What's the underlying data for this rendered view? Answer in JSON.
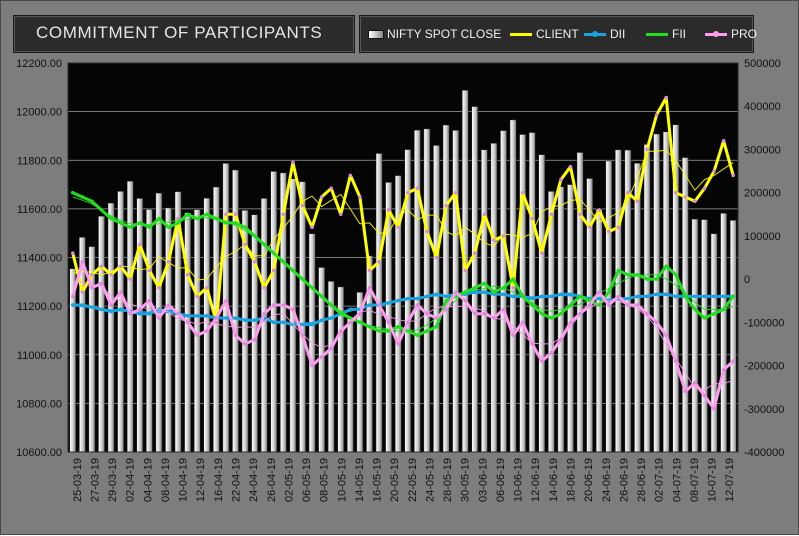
{
  "title": "COMMITMENT  OF PARTICIPANTS",
  "legend": [
    {
      "name": "NIFTY SPOT CLOSE",
      "color": "#e8e8e8",
      "kind": "bar"
    },
    {
      "name": "CLIENT",
      "color": "#ffff00",
      "kind": "line"
    },
    {
      "name": "DII",
      "color": "#19a3e0",
      "kind": "line"
    },
    {
      "name": "FII",
      "color": "#22dd22",
      "kind": "line"
    },
    {
      "name": "PRO",
      "color": "#ff9cf0",
      "kind": "line"
    }
  ],
  "chart_data": {
    "type": "bar",
    "title": "COMMITMENT  OF PARTICIPANTS",
    "x_tick_labels": [
      "25-03-19",
      "27-03-19",
      "29-03-19",
      "02-04-19",
      "04-04-19",
      "08-04-19",
      "10-04-19",
      "12-04-19",
      "16-04-19",
      "22-04-19",
      "24-04-19",
      "26-04-19",
      "02-05-19",
      "06-05-19",
      "08-05-19",
      "10-05-19",
      "14-05-19",
      "16-05-19",
      "20-05-19",
      "22-05-19",
      "24-05-19",
      "28-05-19",
      "30-05-19",
      "03-06-19",
      "06-06-19",
      "10-06-19",
      "12-06-19",
      "14-06-19",
      "18-06-19",
      "20-06-19",
      "24-06-19",
      "26-06-19",
      "28-06-19",
      "02-07-19",
      "04-07-19",
      "08-07-19",
      "10-07-19",
      "12-07-19"
    ],
    "y_left": {
      "ticks": [
        "10600.00",
        "10800.00",
        "11000.00",
        "11200.00",
        "11400.00",
        "11600.00",
        "11800.00",
        "12000.00",
        "12200.00"
      ],
      "range": [
        10600,
        12200
      ]
    },
    "y_right": {
      "ticks": [
        "-400000",
        "-300000",
        "-200000",
        "-100000",
        "0",
        "100000",
        "200000",
        "300000",
        "400000",
        "500000"
      ],
      "range": [
        -400000,
        500000
      ]
    },
    "series": [
      {
        "name": "NIFTY SPOT CLOSE",
        "axis": "left",
        "type": "bar",
        "values": [
          11354,
          11483,
          11445,
          11570,
          11624,
          11672,
          11714,
          11643,
          11598,
          11665,
          11604,
          11671,
          11584,
          11597,
          11644,
          11690,
          11787,
          11760,
          11594,
          11576,
          11643,
          11754,
          11748,
          11724,
          11712,
          11498,
          11359,
          11302,
          11279,
          11148,
          11257,
          11407,
          11828,
          11709,
          11737,
          11844,
          11924,
          11929,
          11861,
          11945,
          11923,
          12088,
          12021,
          11843,
          11870,
          11922,
          11966,
          11906,
          11914,
          11823,
          11672,
          11691,
          11700,
          11832,
          11725,
          11600,
          11797,
          11843,
          11842,
          11788,
          11865,
          11908,
          11917,
          11946,
          11811,
          11558,
          11556,
          11498,
          11582,
          11553
        ]
      },
      {
        "name": "CLIENT",
        "axis": "right",
        "type": "line",
        "values": [
          60000,
          -30000,
          10000,
          30000,
          10000,
          30000,
          0,
          80000,
          20000,
          -20000,
          40000,
          140000,
          10000,
          -40000,
          -20000,
          -100000,
          150000,
          150000,
          80000,
          40000,
          -20000,
          20000,
          150000,
          270000,
          170000,
          120000,
          190000,
          210000,
          150000,
          240000,
          190000,
          20000,
          40000,
          160000,
          120000,
          200000,
          210000,
          110000,
          50000,
          170000,
          200000,
          20000,
          60000,
          150000,
          90000,
          100000,
          -20000,
          200000,
          140000,
          60000,
          150000,
          230000,
          260000,
          150000,
          120000,
          160000,
          110000,
          120000,
          200000,
          180000,
          300000,
          380000,
          420000,
          200000,
          190000,
          180000,
          210000,
          250000,
          320000,
          240000
        ]
      },
      {
        "name": "DII",
        "axis": "right",
        "type": "line",
        "values": [
          -60000,
          -60000,
          -65000,
          -70000,
          -75000,
          -70000,
          -75000,
          -80000,
          -80000,
          -70000,
          -75000,
          -80000,
          -85000,
          -85000,
          -85000,
          -90000,
          -90000,
          -90000,
          -95000,
          -95000,
          -90000,
          -100000,
          -100000,
          -105000,
          -105000,
          -105000,
          -95000,
          -90000,
          -80000,
          -70000,
          -70000,
          -60000,
          -60000,
          -55000,
          -50000,
          -45000,
          -45000,
          -40000,
          -35000,
          -40000,
          -35000,
          -35000,
          -30000,
          -30000,
          -35000,
          -35000,
          -40000,
          -40000,
          -45000,
          -40000,
          -40000,
          -35000,
          -35000,
          -40000,
          -45000,
          -45000,
          -50000,
          -45000,
          -45000,
          -40000,
          -40000,
          -35000,
          -35000,
          -40000,
          -40000,
          -40000,
          -40000,
          -40000,
          -40000,
          -40000
        ]
      },
      {
        "name": "FII",
        "axis": "right",
        "type": "line",
        "values": [
          200000,
          190000,
          180000,
          160000,
          140000,
          130000,
          120000,
          130000,
          120000,
          140000,
          120000,
          130000,
          150000,
          140000,
          150000,
          140000,
          130000,
          130000,
          120000,
          100000,
          80000,
          60000,
          40000,
          20000,
          0,
          -20000,
          -40000,
          -60000,
          -80000,
          -90000,
          -100000,
          -110000,
          -120000,
          -120000,
          -110000,
          -120000,
          -130000,
          -120000,
          -110000,
          -50000,
          -40000,
          -30000,
          -20000,
          -10000,
          -30000,
          -20000,
          0,
          -40000,
          -60000,
          -80000,
          -90000,
          -80000,
          -60000,
          -40000,
          -50000,
          -60000,
          -30000,
          20000,
          10000,
          10000,
          0,
          0,
          30000,
          10000,
          -40000,
          -70000,
          -90000,
          -80000,
          -70000,
          -40000
        ]
      },
      {
        "name": "PRO",
        "axis": "right",
        "type": "line",
        "values": [
          -40000,
          40000,
          -20000,
          -10000,
          -60000,
          -30000,
          -80000,
          -70000,
          -50000,
          -90000,
          -60000,
          -80000,
          -100000,
          -130000,
          -120000,
          -90000,
          -50000,
          -130000,
          -150000,
          -140000,
          -80000,
          -60000,
          -60000,
          -70000,
          -130000,
          -200000,
          -180000,
          -160000,
          -120000,
          -100000,
          -80000,
          -20000,
          -60000,
          -100000,
          -150000,
          -100000,
          -60000,
          -80000,
          -90000,
          -70000,
          -30000,
          -50000,
          -80000,
          -80000,
          -90000,
          -70000,
          -130000,
          -100000,
          -150000,
          -190000,
          -170000,
          -140000,
          -100000,
          -80000,
          -60000,
          -30000,
          -60000,
          -40000,
          -60000,
          -60000,
          -80000,
          -100000,
          -130000,
          -190000,
          -260000,
          -240000,
          -270000,
          -300000,
          -210000,
          -190000
        ]
      }
    ]
  }
}
